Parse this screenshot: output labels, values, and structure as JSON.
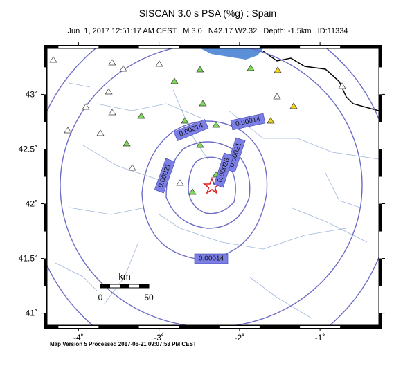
{
  "title": "SISCAN 3.0 s PSA (%g) : Spain",
  "subtitle": "Jun  1, 2017 12:51:17 AM CEST   M 3.0   N42.17 W2.32   Depth: -1.5km   ID:11334",
  "map": {
    "lonlim": [
      -4.39,
      -0.27
    ],
    "latlim": [
      40.89,
      43.42
    ],
    "lonticks": [
      {
        "value": -4,
        "label": "-4˚"
      },
      {
        "value": -3,
        "label": "-3˚"
      },
      {
        "value": -2,
        "label": "-2˚"
      },
      {
        "value": -1,
        "label": "-1˚"
      }
    ],
    "latticks": [
      {
        "value": 43,
        "label": "43˚"
      },
      {
        "value": 42.5,
        "label": "42.5˚"
      },
      {
        "value": 42,
        "label": "42˚"
      },
      {
        "value": 41.5,
        "label": "41.5˚"
      },
      {
        "value": 41,
        "label": "41˚"
      }
    ]
  },
  "contour_labels": [
    "0.00014",
    "0.00014",
    "0.00021",
    "0.00028",
    "0.00021",
    "0.00014"
  ],
  "scale_bar": {
    "title": "km",
    "labels": [
      "0",
      "50"
    ]
  },
  "footer": "Map Version 5 Processed 2017-06-21 09:07:53 PM CEST"
}
